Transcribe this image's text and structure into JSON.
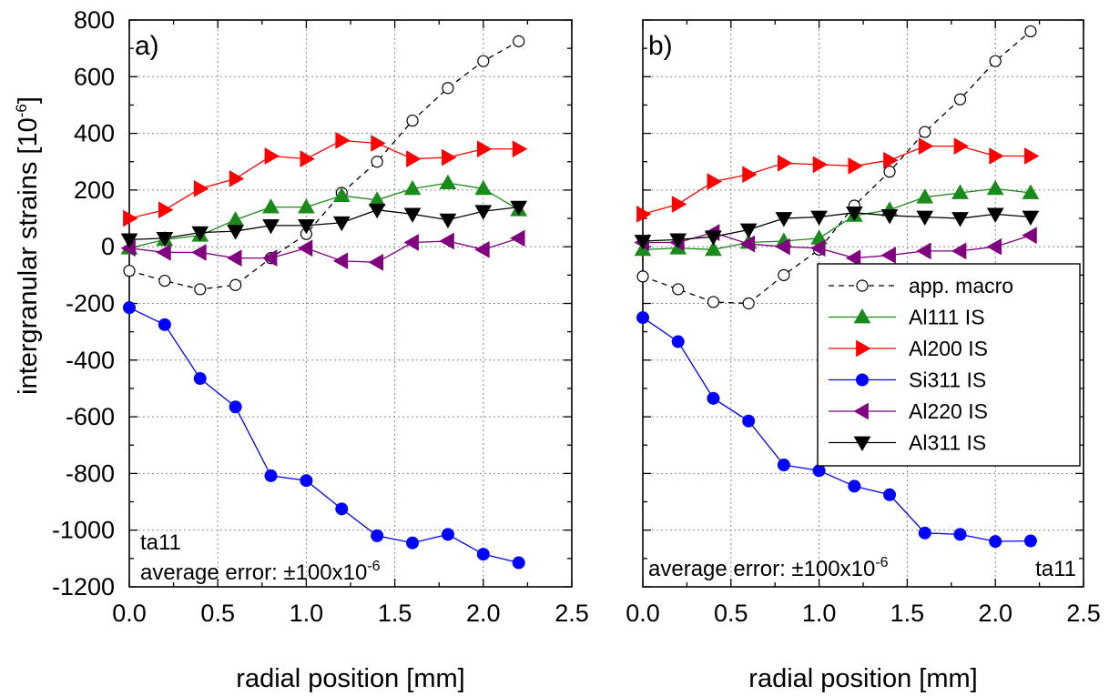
{
  "figure": {
    "ylabel": "intergranular strains [10",
    "ylabel_sup": "-6",
    "ylabel_end": "]",
    "xlabel": "radial position [mm]"
  },
  "legend": {
    "placement": "right side of panel b"
  },
  "chart_data": [
    {
      "type": "line",
      "panel_label": "a)",
      "annotation_sample": "ta11",
      "annotation_error": "average error: ±100x10",
      "annotation_error_sup": "-6",
      "xlabel": "radial position [mm]",
      "ylabel": "intergranular strains [10^-6]",
      "xlim": [
        0,
        2.5
      ],
      "ylim": [
        -1200,
        800
      ],
      "xticks": [
        "0.0",
        "0.5",
        "1.0",
        "1.5",
        "2.0",
        "2.5"
      ],
      "yticks": [
        "800",
        "600",
        "400",
        "200",
        "0",
        "-200",
        "-400",
        "-600",
        "-800",
        "-1000",
        "-1200"
      ],
      "grid": true,
      "x": [
        0.0,
        0.2,
        0.4,
        0.6,
        0.8,
        1.0,
        1.2,
        1.4,
        1.6,
        1.8,
        2.0,
        2.2
      ],
      "series": [
        {
          "name": "app. macro",
          "color": "#000000",
          "marker": "circle-open",
          "dash": true,
          "values": [
            -85,
            -120,
            -150,
            -135,
            -40,
            45,
            190,
            300,
            445,
            560,
            655,
            725
          ]
        },
        {
          "name": "Al111 IS",
          "color": "#1a8a1a",
          "marker": "triangle-up",
          "values": [
            -5,
            25,
            40,
            95,
            140,
            140,
            180,
            165,
            205,
            225,
            205,
            130
          ]
        },
        {
          "name": "Al200 IS",
          "color": "#ff0000",
          "marker": "triangle-right",
          "values": [
            100,
            130,
            205,
            240,
            320,
            310,
            375,
            365,
            310,
            315,
            345,
            345
          ]
        },
        {
          "name": "Si311 IS",
          "color": "#0000ff",
          "marker": "circle",
          "values": [
            -215,
            -275,
            -465,
            -565,
            -808,
            -825,
            -925,
            -1020,
            -1045,
            -1015,
            -1085,
            -1115
          ]
        },
        {
          "name": "Al220 IS",
          "color": "#800080",
          "marker": "triangle-left",
          "values": [
            -5,
            -20,
            -20,
            -40,
            -40,
            -5,
            -50,
            -55,
            15,
            20,
            -10,
            30
          ]
        },
        {
          "name": "Al311 IS",
          "color": "#000000",
          "marker": "triangle-down",
          "values": [
            25,
            30,
            50,
            55,
            75,
            75,
            85,
            130,
            115,
            95,
            125,
            140
          ]
        }
      ]
    },
    {
      "type": "line",
      "panel_label": "b)",
      "annotation_sample": "ta11",
      "annotation_error": "average error: ±100x10",
      "annotation_error_sup": "-6",
      "xlabel": "radial position [mm]",
      "ylabel": "intergranular strains [10^-6]",
      "xlim": [
        0,
        2.5
      ],
      "ylim": [
        -1200,
        800
      ],
      "xticks": [
        "0.0",
        "0.5",
        "1.0",
        "1.5",
        "2.0",
        "2.5"
      ],
      "grid": true,
      "x": [
        0.0,
        0.2,
        0.4,
        0.6,
        0.8,
        1.0,
        1.2,
        1.4,
        1.6,
        1.8,
        2.0,
        2.2
      ],
      "series": [
        {
          "name": "app. macro",
          "color": "#000000",
          "marker": "circle-open",
          "dash": true,
          "values": [
            -105,
            -150,
            -195,
            -200,
            -100,
            -10,
            145,
            265,
            405,
            520,
            655,
            760
          ]
        },
        {
          "name": "Al111 IS",
          "color": "#1a8a1a",
          "marker": "triangle-up",
          "values": [
            -10,
            -5,
            -10,
            15,
            20,
            30,
            110,
            130,
            175,
            190,
            205,
            190
          ]
        },
        {
          "name": "Al200 IS",
          "color": "#ff0000",
          "marker": "triangle-right",
          "values": [
            115,
            150,
            230,
            255,
            295,
            290,
            285,
            305,
            355,
            355,
            320,
            320
          ]
        },
        {
          "name": "Si311 IS",
          "color": "#0000ff",
          "marker": "circle",
          "values": [
            -250,
            -335,
            -535,
            -615,
            -770,
            -790,
            -845,
            -875,
            -1010,
            -1015,
            -1040,
            -1038
          ]
        },
        {
          "name": "Al220 IS",
          "color": "#800080",
          "marker": "triangle-left",
          "values": [
            15,
            15,
            50,
            10,
            0,
            -5,
            -40,
            -30,
            -15,
            -15,
            0,
            40
          ]
        },
        {
          "name": "Al311 IS",
          "color": "#000000",
          "marker": "triangle-down",
          "values": [
            20,
            25,
            35,
            60,
            100,
            105,
            120,
            110,
            105,
            100,
            115,
            105
          ]
        }
      ]
    }
  ]
}
